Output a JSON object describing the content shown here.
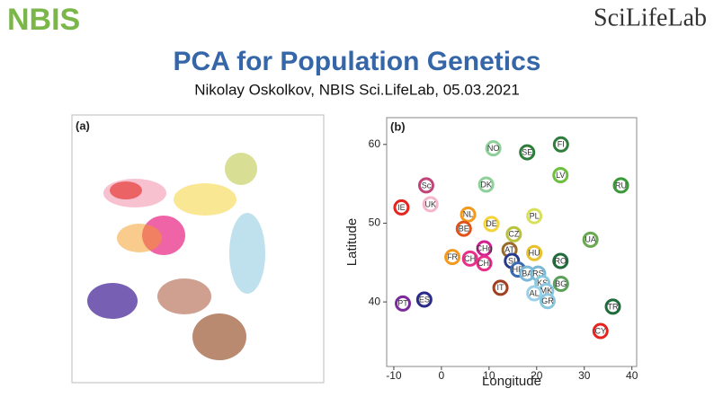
{
  "header": {
    "logo_left": "NBIS",
    "logo_right": "SciLifeLab",
    "title": "PCA for Population Genetics",
    "subtitle": "Nikolay Oskolkov, NBIS Sci.LifeLab, 05.03.2021"
  },
  "panel_a": {
    "label": "(a)"
  },
  "chart_data": {
    "type": "scatter",
    "panel_label": "(b)",
    "x_label": "Longitude",
    "y_label": "Latitude",
    "xlim": [
      -11.5,
      41
    ],
    "ylim": [
      31.8,
      63.4
    ],
    "xticks": [
      -10,
      0,
      10,
      20,
      30,
      40
    ],
    "yticks": [
      40,
      50,
      60
    ],
    "labels": [
      "NO",
      "SE",
      "FI",
      "LV",
      "RU",
      "DK",
      "Sc",
      "UK",
      "IE",
      "NL",
      "BE",
      "DE",
      "PL",
      "CZ",
      "UA",
      "FR",
      "CH",
      "CHg",
      "CHi",
      "AT",
      "HU",
      "SI",
      "HR",
      "RO",
      "BA",
      "RS",
      "KS",
      "MK",
      "BG",
      "AL",
      "GR",
      "IT",
      "ES",
      "PT",
      "TR",
      "CY"
    ],
    "x": [
      10.9,
      18.0,
      25.1,
      25.0,
      37.7,
      9.4,
      -3.2,
      -2.3,
      -8.4,
      5.6,
      4.7,
      10.5,
      19.5,
      15.2,
      31.3,
      2.3,
      6.0,
      9.0,
      9.0,
      14.3,
      19.5,
      14.8,
      16.1,
      25.0,
      18.0,
      20.3,
      21.2,
      22.0,
      25.1,
      19.5,
      22.3,
      12.4,
      -3.6,
      -8.1,
      36.0,
      33.4
    ],
    "values": [
      59.5,
      59.0,
      60.0,
      56.1,
      54.8,
      54.9,
      54.8,
      52.4,
      52.0,
      51.1,
      49.3,
      49.9,
      50.9,
      48.6,
      47.9,
      45.7,
      45.5,
      46.8,
      44.9,
      46.6,
      46.2,
      45.2,
      44.1,
      45.2,
      43.6,
      43.6,
      42.4,
      41.4,
      42.3,
      41.1,
      40.1,
      41.8,
      40.3,
      39.8,
      39.4,
      36.3
    ],
    "colors": [
      "#8fcf9a",
      "#2e7d3a",
      "#2e7d3a",
      "#6cbf3c",
      "#3a9a3a",
      "#8fcf9a",
      "#c2457a",
      "#f4b6c8",
      "#e52420",
      "#f39a1e",
      "#e0541c",
      "#f5d33a",
      "#d6e05a",
      "#b8c23a",
      "#6aa84f",
      "#f39a1e",
      "#e8308a",
      "#d02090",
      "#e8308a",
      "#9a6a2a",
      "#e8c02a",
      "#2a3a8a",
      "#3a6ab0",
      "#1f6b3a",
      "#7ab8d8",
      "#7ab8d8",
      "#8ac8e0",
      "#8ac8e0",
      "#5aa05a",
      "#9ad0e8",
      "#8ac8e0",
      "#a04020",
      "#2a2a8a",
      "#7a2a9a",
      "#1f6b3a",
      "#e52420"
    ]
  }
}
